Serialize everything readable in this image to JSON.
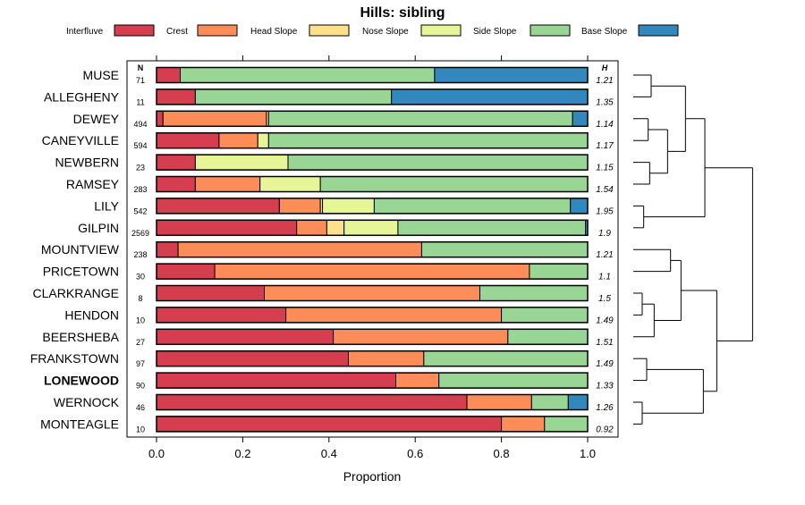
{
  "chart_data": {
    "type": "bar",
    "stacked": true,
    "orientation": "horizontal",
    "title": "Hills: sibling",
    "xlabel": "Proportion",
    "ylabel": "",
    "xlim": [
      0,
      1
    ],
    "xticks": [
      "0.0",
      "0.2",
      "0.4",
      "0.6",
      "0.8",
      "1.0"
    ],
    "xtick_values": [
      0,
      0.2,
      0.4,
      0.6,
      0.8,
      1.0
    ],
    "n_header": "N",
    "h_header": "H",
    "highlight": "LONEWOOD",
    "legend": [
      {
        "name": "Interfluve",
        "color": "#d53e4f"
      },
      {
        "name": "Crest",
        "color": "#fc8d59"
      },
      {
        "name": "Head Slope",
        "color": "#fee08b"
      },
      {
        "name": "Nose Slope",
        "color": "#e6f598"
      },
      {
        "name": "Side Slope",
        "color": "#99d594"
      },
      {
        "name": "Base Slope",
        "color": "#3288bd"
      }
    ],
    "categories": [
      "MUSE",
      "ALLEGHENY",
      "DEWEY",
      "CANEYVILLE",
      "NEWBERN",
      "RAMSEY",
      "LILY",
      "GILPIN",
      "MOUNTVIEW",
      "PRICETOWN",
      "CLARKRANGE",
      "HENDON",
      "BEERSHEBA",
      "FRANKSTOWN",
      "LONEWOOD",
      "WERNOCK",
      "MONTEAGLE"
    ],
    "n": [
      "71",
      "11",
      "494",
      "594",
      "23",
      "283",
      "542",
      "2569",
      "238",
      "30",
      "8",
      "10",
      "27",
      "97",
      "90",
      "46",
      "10"
    ],
    "h": [
      "1.21",
      "1.35",
      "1.14",
      "1.17",
      "1.15",
      "1.54",
      "1.95",
      "1.9",
      "1.21",
      "1.1",
      "1.5",
      "1.49",
      "1.51",
      "1.49",
      "1.33",
      "1.26",
      "0.92"
    ],
    "series": [
      {
        "name": "Interfluve",
        "values": [
          0.055,
          0.09,
          0.015,
          0.145,
          0.09,
          0.09,
          0.285,
          0.325,
          0.05,
          0.135,
          0.25,
          0.3,
          0.41,
          0.445,
          0.555,
          0.72,
          0.8
        ]
      },
      {
        "name": "Crest",
        "values": [
          0,
          0,
          0.24,
          0.09,
          0,
          0.15,
          0.095,
          0.07,
          0.565,
          0.73,
          0.5,
          0.5,
          0.405,
          0.175,
          0.1,
          0.15,
          0.1
        ]
      },
      {
        "name": "Head Slope",
        "values": [
          0,
          0,
          0.005,
          0,
          0,
          0,
          0.005,
          0.04,
          0,
          0,
          0,
          0,
          0,
          0,
          0,
          0,
          0
        ]
      },
      {
        "name": "Nose Slope",
        "values": [
          0,
          0,
          0,
          0.025,
          0.215,
          0.14,
          0.12,
          0.125,
          0,
          0,
          0,
          0,
          0,
          0,
          0,
          0,
          0
        ]
      },
      {
        "name": "Side Slope",
        "values": [
          0.59,
          0.455,
          0.705,
          0.74,
          0.695,
          0.62,
          0.455,
          0.435,
          0.385,
          0.135,
          0.25,
          0.2,
          0.185,
          0.38,
          0.345,
          0.085,
          0.1
        ]
      },
      {
        "name": "Base Slope",
        "values": [
          0.355,
          0.455,
          0.035,
          0,
          0,
          0,
          0.04,
          0.005,
          0,
          0,
          0,
          0,
          0,
          0,
          0,
          0.045,
          0
        ]
      }
    ],
    "dendrogram": [
      [
        0,
        1
      ],
      [
        2,
        3
      ],
      [
        4,
        5
      ],
      [
        -2,
        -3
      ],
      [
        -1,
        -4
      ],
      [
        6,
        7
      ],
      [
        -5,
        -6
      ],
      [
        8,
        9
      ],
      [
        10,
        11
      ],
      [
        -9,
        12
      ],
      [
        -8,
        -10
      ],
      [
        13,
        14
      ],
      [
        -12,
        15
      ],
      [
        -11,
        -13
      ],
      [
        -7,
        -14
      ],
      [
        -15,
        16
      ]
    ]
  }
}
